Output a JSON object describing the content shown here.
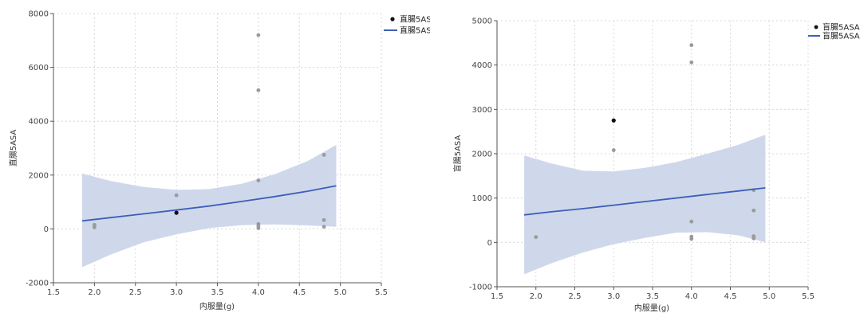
{
  "colors": {
    "band": "#ccd6ea",
    "line": "#3e5eb8",
    "point_gray": "#9a9a9a",
    "point_black": "#111111",
    "grid": "#d8d8d8",
    "axis": "#555555"
  },
  "chart_data": [
    {
      "type": "scatter",
      "xlabel": "内服量(g)",
      "ylabel": "直腸5ASA",
      "xlim": [
        1.5,
        5.5
      ],
      "ylim": [
        -2000,
        8000
      ],
      "xticks": [
        1.5,
        2.0,
        2.5,
        3.0,
        3.5,
        4.0,
        4.5,
        5.0,
        5.5
      ],
      "yticks": [
        -2000,
        0,
        2000,
        4000,
        6000,
        8000
      ],
      "legend": {
        "position": "top-right",
        "entries": [
          {
            "kind": "point",
            "label": "直腸5ASA"
          },
          {
            "kind": "line",
            "label": "直腸5ASA"
          }
        ]
      },
      "points": [
        {
          "x": 2.0,
          "y": 150,
          "highlight": false
        },
        {
          "x": 2.0,
          "y": 60,
          "highlight": false
        },
        {
          "x": 3.0,
          "y": 1250,
          "highlight": false
        },
        {
          "x": 3.0,
          "y": 600,
          "highlight": true
        },
        {
          "x": 4.0,
          "y": 7200,
          "highlight": false
        },
        {
          "x": 4.0,
          "y": 5150,
          "highlight": false
        },
        {
          "x": 4.0,
          "y": 1800,
          "highlight": false
        },
        {
          "x": 4.0,
          "y": 180,
          "highlight": false
        },
        {
          "x": 4.0,
          "y": 100,
          "highlight": false
        },
        {
          "x": 4.0,
          "y": 30,
          "highlight": false
        },
        {
          "x": 4.8,
          "y": 2750,
          "highlight": false
        },
        {
          "x": 4.8,
          "y": 330,
          "highlight": false
        },
        {
          "x": 4.8,
          "y": 80,
          "highlight": false
        }
      ],
      "fit": {
        "x": [
          1.85,
          2.2,
          2.6,
          3.0,
          3.4,
          3.8,
          4.2,
          4.6,
          4.95
        ],
        "y": [
          300,
          420,
          560,
          700,
          850,
          1020,
          1200,
          1400,
          1600
        ],
        "lower": [
          -1420,
          -950,
          -500,
          -200,
          30,
          140,
          170,
          130,
          80
        ],
        "upper": [
          2060,
          1780,
          1560,
          1450,
          1480,
          1680,
          2030,
          2520,
          3120
        ]
      }
    },
    {
      "type": "scatter",
      "xlabel": "内服量(g)",
      "ylabel": "盲腸5ASA",
      "xlim": [
        1.5,
        5.5
      ],
      "ylim": [
        -1000,
        5000
      ],
      "xticks": [
        1.5,
        2.0,
        2.5,
        3.0,
        3.5,
        4.0,
        4.5,
        5.0,
        5.5
      ],
      "yticks": [
        -1000,
        0,
        1000,
        2000,
        3000,
        4000,
        5000
      ],
      "legend": {
        "position": "top-right",
        "entries": [
          {
            "kind": "point",
            "label": "盲腸5ASA"
          },
          {
            "kind": "line",
            "label": "盲腸5ASA"
          }
        ]
      },
      "points": [
        {
          "x": 2.0,
          "y": 120,
          "highlight": false
        },
        {
          "x": 3.0,
          "y": 2750,
          "highlight": true
        },
        {
          "x": 3.0,
          "y": 2080,
          "highlight": false
        },
        {
          "x": 4.0,
          "y": 4450,
          "highlight": false
        },
        {
          "x": 4.0,
          "y": 4060,
          "highlight": false
        },
        {
          "x": 4.0,
          "y": 470,
          "highlight": false
        },
        {
          "x": 4.0,
          "y": 130,
          "highlight": false
        },
        {
          "x": 4.0,
          "y": 80,
          "highlight": false
        },
        {
          "x": 4.8,
          "y": 1180,
          "highlight": false
        },
        {
          "x": 4.8,
          "y": 720,
          "highlight": false
        },
        {
          "x": 4.8,
          "y": 140,
          "highlight": false
        },
        {
          "x": 4.8,
          "y": 90,
          "highlight": false
        }
      ],
      "fit": {
        "x": [
          1.85,
          2.2,
          2.6,
          3.0,
          3.4,
          3.8,
          4.2,
          4.6,
          4.95
        ],
        "y": [
          620,
          690,
          760,
          840,
          920,
          1000,
          1080,
          1160,
          1230
        ],
        "lower": [
          -720,
          -470,
          -230,
          -40,
          100,
          220,
          230,
          160,
          0
        ],
        "upper": [
          1960,
          1780,
          1620,
          1600,
          1680,
          1810,
          2000,
          2200,
          2430
        ]
      }
    }
  ]
}
